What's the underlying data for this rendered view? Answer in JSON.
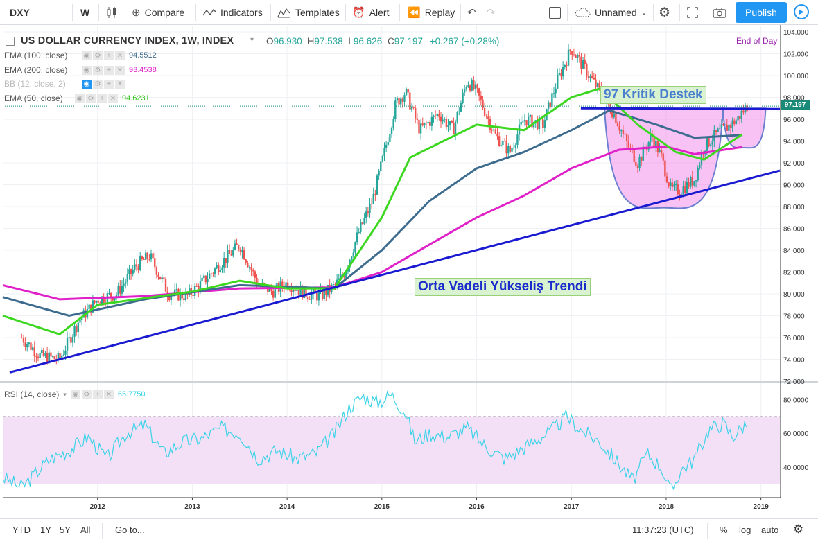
{
  "toolbar": {
    "symbol": "DXY",
    "interval": "W",
    "compare": "Compare",
    "indicators": "Indicators",
    "templates": "Templates",
    "alert": "Alert",
    "replay": "Replay",
    "layout_name": "Unnamed",
    "publish": "Publish",
    "icons": [
      "candles-icon",
      "plus-circle-icon",
      "indicators-icon",
      "templates-icon",
      "alert-clock-icon",
      "replay-icon",
      "undo-icon",
      "redo-icon",
      "layout-square-icon",
      "cloud-icon",
      "gear-icon",
      "fullscreen-icon",
      "camera-icon",
      "play-icon"
    ]
  },
  "header": {
    "title": "US DOLLAR CURRENCY INDEX, 1W, INDEX",
    "o_label": "O",
    "o_value": "96.930",
    "h_label": "H",
    "h_value": "97.538",
    "l_label": "L",
    "l_value": "96.626",
    "c_label": "C",
    "c_value": "97.197",
    "change": "+0.267 (+0.28%)",
    "end_of_day": "End of Day"
  },
  "indicators": [
    {
      "label": "EMA (100, close)",
      "value": "94.5512",
      "color": "#3d6c8f"
    },
    {
      "label": "EMA (200, close)",
      "value": "93.4538",
      "color": "#e020c8"
    },
    {
      "label": "BB (12, close, 2)",
      "value": "",
      "color": "#7b8cc0"
    },
    {
      "label": "EMA (50, close)",
      "value": "94.6231",
      "color": "#3cd820"
    }
  ],
  "rsi": {
    "label": "RSI (14, close)",
    "value": "65.7750",
    "color": "#3cd3e8"
  },
  "annotations": {
    "support": "97 Kritik Destek",
    "trend": "Orta Vadeli Yükseliş Trendi"
  },
  "price_axis": {
    "labels": [
      "104.000",
      "102.000",
      "100.000",
      "98.000",
      "96.000",
      "94.000",
      "92.000",
      "90.000",
      "88.000",
      "86.000",
      "84.000",
      "82.000",
      "80.000",
      "78.000",
      "76.000",
      "74.000",
      "72.000"
    ],
    "last_price": "97.197"
  },
  "rsi_axis": {
    "labels": [
      "80.0000",
      "60.0000",
      "40.0000"
    ]
  },
  "time_axis": {
    "labels": [
      "2012",
      "2013",
      "2014",
      "2015",
      "2016",
      "2017",
      "2018",
      "2019"
    ]
  },
  "bottom": {
    "ranges": [
      "YTD",
      "1Y",
      "5Y",
      "All"
    ],
    "goto": "Go to...",
    "time": "11:37:23 (UTC)",
    "percent": "%",
    "log": "log",
    "auto": "auto"
  },
  "chart_data": {
    "type": "candlestick",
    "symbol": "DXY",
    "interval": "1W",
    "ylim": [
      72,
      104
    ],
    "x_range": [
      "2011",
      "2018-11"
    ],
    "price_path": [
      [
        2011.2,
        76.0
      ],
      [
        2011.4,
        74.3
      ],
      [
        2011.6,
        74.0
      ],
      [
        2011.8,
        77.5
      ],
      [
        2012.0,
        79.5
      ],
      [
        2012.2,
        80.0
      ],
      [
        2012.4,
        82.5
      ],
      [
        2012.55,
        83.5
      ],
      [
        2012.75,
        80.0
      ],
      [
        2012.95,
        79.8
      ],
      [
        2013.1,
        81.0
      ],
      [
        2013.3,
        82.8
      ],
      [
        2013.5,
        84.5
      ],
      [
        2013.7,
        80.8
      ],
      [
        2013.85,
        80.2
      ],
      [
        2014.0,
        81.0
      ],
      [
        2014.2,
        80.0
      ],
      [
        2014.35,
        79.8
      ],
      [
        2014.5,
        80.7
      ],
      [
        2014.6,
        81.8
      ],
      [
        2014.75,
        85.5
      ],
      [
        2014.9,
        88.5
      ],
      [
        2015.0,
        92.0
      ],
      [
        2015.15,
        97.5
      ],
      [
        2015.25,
        98.5
      ],
      [
        2015.4,
        95.0
      ],
      [
        2015.6,
        96.5
      ],
      [
        2015.75,
        95.0
      ],
      [
        2015.9,
        99.5
      ],
      [
        2016.0,
        98.5
      ],
      [
        2016.2,
        94.5
      ],
      [
        2016.35,
        93.0
      ],
      [
        2016.5,
        96.0
      ],
      [
        2016.7,
        95.5
      ],
      [
        2016.85,
        99.5
      ],
      [
        2017.0,
        102.5
      ],
      [
        2017.15,
        100.5
      ],
      [
        2017.3,
        98.5
      ],
      [
        2017.45,
        96.5
      ],
      [
        2017.6,
        93.5
      ],
      [
        2017.7,
        92.0
      ],
      [
        2017.85,
        94.5
      ],
      [
        2017.95,
        92.5
      ],
      [
        2018.05,
        89.5
      ],
      [
        2018.15,
        89.5
      ],
      [
        2018.3,
        90.5
      ],
      [
        2018.4,
        93.5
      ],
      [
        2018.55,
        94.8
      ],
      [
        2018.65,
        95.3
      ],
      [
        2018.75,
        96.0
      ],
      [
        2018.85,
        97.2
      ]
    ],
    "ema50_path": [
      [
        2011.0,
        78.0
      ],
      [
        2011.6,
        76.3
      ],
      [
        2012.0,
        79.0
      ],
      [
        2013.0,
        80.2
      ],
      [
        2013.5,
        81.2
      ],
      [
        2014.0,
        80.5
      ],
      [
        2014.5,
        80.5
      ],
      [
        2015.0,
        87.0
      ],
      [
        2015.3,
        92.5
      ],
      [
        2016.0,
        95.5
      ],
      [
        2016.5,
        95.0
      ],
      [
        2017.0,
        98.0
      ],
      [
        2017.3,
        98.8
      ],
      [
        2017.7,
        95.5
      ],
      [
        2018.1,
        93.0
      ],
      [
        2018.4,
        92.3
      ],
      [
        2018.8,
        94.6
      ]
    ],
    "ema100_path": [
      [
        2011.0,
        79.7
      ],
      [
        2011.7,
        78.0
      ],
      [
        2012.5,
        79.5
      ],
      [
        2013.5,
        80.8
      ],
      [
        2014.5,
        80.5
      ],
      [
        2015.0,
        84.0
      ],
      [
        2015.5,
        88.5
      ],
      [
        2016.0,
        91.5
      ],
      [
        2016.5,
        93.0
      ],
      [
        2017.0,
        95.0
      ],
      [
        2017.4,
        96.8
      ],
      [
        2017.9,
        95.5
      ],
      [
        2018.3,
        94.3
      ],
      [
        2018.8,
        94.55
      ]
    ],
    "ema200_path": [
      [
        2011.0,
        80.8
      ],
      [
        2011.6,
        79.5
      ],
      [
        2012.5,
        79.8
      ],
      [
        2013.5,
        80.5
      ],
      [
        2014.5,
        80.6
      ],
      [
        2015.0,
        82.0
      ],
      [
        2015.5,
        84.5
      ],
      [
        2016.0,
        87.0
      ],
      [
        2016.5,
        89.0
      ],
      [
        2017.0,
        91.5
      ],
      [
        2017.5,
        93.2
      ],
      [
        2018.0,
        93.5
      ],
      [
        2018.3,
        92.8
      ],
      [
        2018.8,
        93.45
      ]
    ],
    "trend_line": [
      [
        2011.0,
        72.8
      ],
      [
        2019.2,
        91.3
      ]
    ],
    "support_line": {
      "x": [
        2017.1,
        2019.2
      ],
      "y": 97.0
    },
    "cup_shapes": [
      {
        "x": [
          2017.35,
          2018.6
        ],
        "top": 97.0,
        "bottom": 87.9
      },
      {
        "x": [
          2018.6,
          2019.05
        ],
        "top": 97.0,
        "bottom": 93.4
      }
    ],
    "rsi_series": {
      "name": "RSI (14, close)",
      "ylim": [
        22,
        90
      ],
      "bands": [
        30,
        70
      ],
      "path": [
        [
          2011.0,
          34
        ],
        [
          2011.2,
          28
        ],
        [
          2011.5,
          45
        ],
        [
          2011.7,
          50
        ],
        [
          2011.9,
          58
        ],
        [
          2012.1,
          45
        ],
        [
          2012.3,
          60
        ],
        [
          2012.5,
          65
        ],
        [
          2012.7,
          48
        ],
        [
          2012.9,
          55
        ],
        [
          2013.1,
          57
        ],
        [
          2013.3,
          63
        ],
        [
          2013.5,
          60
        ],
        [
          2013.7,
          45
        ],
        [
          2013.9,
          50
        ],
        [
          2014.1,
          45
        ],
        [
          2014.3,
          48
        ],
        [
          2014.5,
          60
        ],
        [
          2014.65,
          75
        ],
        [
          2014.8,
          82
        ],
        [
          2014.95,
          78
        ],
        [
          2015.1,
          83
        ],
        [
          2015.25,
          72
        ],
        [
          2015.35,
          55
        ],
        [
          2015.5,
          60
        ],
        [
          2015.7,
          58
        ],
        [
          2015.9,
          63
        ],
        [
          2016.1,
          52
        ],
        [
          2016.3,
          45
        ],
        [
          2016.45,
          50
        ],
        [
          2016.6,
          55
        ],
        [
          2016.8,
          62
        ],
        [
          2016.95,
          70
        ],
        [
          2017.1,
          62
        ],
        [
          2017.3,
          55
        ],
        [
          2017.5,
          42
        ],
        [
          2017.65,
          32
        ],
        [
          2017.8,
          48
        ],
        [
          2017.95,
          40
        ],
        [
          2018.05,
          25
        ],
        [
          2018.15,
          38
        ],
        [
          2018.3,
          45
        ],
        [
          2018.45,
          62
        ],
        [
          2018.6,
          66
        ],
        [
          2018.7,
          58
        ],
        [
          2018.85,
          66
        ]
      ]
    }
  }
}
